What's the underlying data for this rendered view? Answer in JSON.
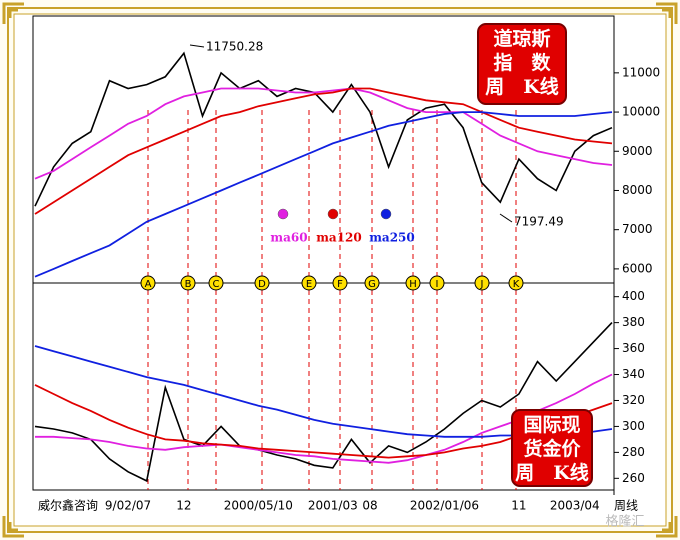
{
  "chart_data": [
    {
      "type": "line",
      "title_lines": [
        "道琼斯",
        "指　数",
        "周　K线"
      ],
      "ylim": [
        5640,
        12450
      ],
      "yticks": [
        6000,
        7000,
        8000,
        9000,
        10000,
        11000
      ],
      "grid": false,
      "annotations": [
        "11750.28",
        "7197.49"
      ],
      "series": [
        {
          "color": "#000000",
          "values": [
            7600,
            8600,
            9200,
            9500,
            10800,
            10600,
            10700,
            10900,
            11500,
            9900,
            11000,
            10600,
            10800,
            10400,
            10600,
            10500,
            10000,
            10700,
            10000,
            8600,
            9800,
            10100,
            10200,
            9600,
            8200,
            7700,
            8800,
            8300,
            8000,
            9000,
            9400,
            9600
          ]
        },
        {
          "name": "ma60",
          "color": "#e020e0",
          "values": [
            8300,
            8500,
            8800,
            9100,
            9400,
            9700,
            9900,
            10200,
            10400,
            10500,
            10600,
            10600,
            10600,
            10550,
            10500,
            10500,
            10550,
            10600,
            10500,
            10300,
            10100,
            10000,
            10000,
            10000,
            9700,
            9400,
            9200,
            9000,
            8900,
            8800,
            8700,
            8650
          ]
        },
        {
          "name": "ma120",
          "color": "#e00000",
          "values": [
            7400,
            7700,
            8000,
            8300,
            8600,
            8900,
            9100,
            9300,
            9500,
            9700,
            9900,
            10000,
            10150,
            10250,
            10350,
            10450,
            10500,
            10600,
            10600,
            10500,
            10400,
            10300,
            10250,
            10200,
            10000,
            9800,
            9600,
            9500,
            9400,
            9300,
            9250,
            9200
          ]
        },
        {
          "name": "ma250",
          "color": "#1020e0",
          "values": [
            5800,
            6000,
            6200,
            6400,
            6600,
            6900,
            7200,
            7400,
            7600,
            7800,
            8000,
            8200,
            8400,
            8600,
            8800,
            9000,
            9200,
            9350,
            9500,
            9650,
            9750,
            9850,
            9950,
            10000,
            10000,
            9950,
            9900,
            9900,
            9900,
            9900,
            9950,
            10000
          ]
        }
      ]
    },
    {
      "type": "line",
      "title_lines": [
        "国际现",
        "货金价",
        "周　K线"
      ],
      "ylim": [
        251,
        409
      ],
      "yticks": [
        260,
        280,
        300,
        320,
        340,
        360,
        380,
        400
      ],
      "grid": false,
      "categories": [
        null,
        null,
        null,
        null,
        null,
        "9/02/07",
        null,
        null,
        "12",
        null,
        null,
        null,
        "2000/05/10",
        null,
        null,
        null,
        "2001/03",
        null,
        "08",
        null,
        null,
        null,
        "2002/01/06",
        null,
        null,
        null,
        "11",
        null,
        null,
        "2003/04",
        null,
        null
      ],
      "event_markers": [
        "A",
        "B",
        "C",
        "D",
        "E",
        "F",
        "G",
        "H",
        "I",
        "J",
        "K"
      ],
      "source": "威尔鑫咨询",
      "period_label": "周线",
      "watermark": "格隆汇",
      "series": [
        {
          "color": "#000000",
          "values": [
            300,
            298,
            295,
            290,
            275,
            265,
            258,
            330,
            290,
            285,
            300,
            285,
            282,
            278,
            275,
            270,
            268,
            290,
            272,
            285,
            280,
            288,
            298,
            310,
            320,
            315,
            325,
            350,
            335,
            350,
            365,
            380
          ]
        },
        {
          "color": "#e020e0",
          "values": [
            292,
            292,
            291,
            290,
            288,
            285,
            283,
            282,
            284,
            285,
            286,
            284,
            282,
            280,
            278,
            277,
            275,
            274,
            273,
            272,
            274,
            278,
            282,
            288,
            295,
            300,
            305,
            312,
            318,
            325,
            333,
            340
          ]
        },
        {
          "color": "#e00000",
          "values": [
            332,
            325,
            318,
            312,
            305,
            299,
            294,
            290,
            289,
            287,
            286,
            285,
            283,
            282,
            281,
            280,
            279,
            278,
            277,
            276,
            277,
            278,
            280,
            283,
            285,
            288,
            293,
            298,
            303,
            308,
            313,
            318
          ]
        },
        {
          "color": "#1020e0",
          "values": [
            362,
            358,
            354,
            350,
            346,
            342,
            338,
            335,
            332,
            328,
            324,
            320,
            316,
            313,
            309,
            305,
            302,
            300,
            298,
            296,
            294,
            293,
            292,
            292,
            292,
            293,
            293,
            294,
            294,
            295,
            296,
            298
          ]
        }
      ]
    }
  ]
}
